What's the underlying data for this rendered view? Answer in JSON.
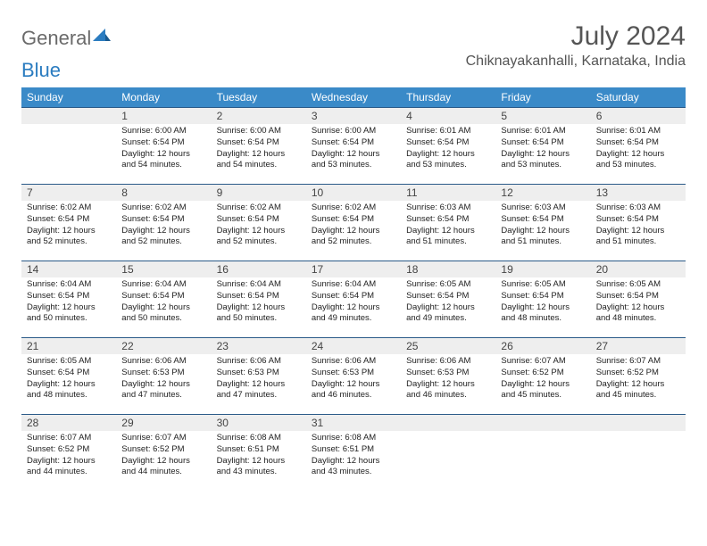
{
  "brand": {
    "general": "General",
    "blue": "Blue"
  },
  "title": "July 2024",
  "location": "Chiknayakanhalli, Karnataka, India",
  "colors": {
    "header_bg": "#3a8ac8",
    "daynum_bg": "#eeeeee",
    "row_border": "#2a5a88",
    "logo_gray": "#6a6a6a",
    "logo_blue": "#2b7cc0"
  },
  "weekdays": [
    "Sunday",
    "Monday",
    "Tuesday",
    "Wednesday",
    "Thursday",
    "Friday",
    "Saturday"
  ],
  "weeks": [
    [
      {
        "n": "",
        "sr": "",
        "ss": "",
        "dl": ""
      },
      {
        "n": "1",
        "sr": "6:00 AM",
        "ss": "6:54 PM",
        "dl": "12 hours and 54 minutes."
      },
      {
        "n": "2",
        "sr": "6:00 AM",
        "ss": "6:54 PM",
        "dl": "12 hours and 54 minutes."
      },
      {
        "n": "3",
        "sr": "6:00 AM",
        "ss": "6:54 PM",
        "dl": "12 hours and 53 minutes."
      },
      {
        "n": "4",
        "sr": "6:01 AM",
        "ss": "6:54 PM",
        "dl": "12 hours and 53 minutes."
      },
      {
        "n": "5",
        "sr": "6:01 AM",
        "ss": "6:54 PM",
        "dl": "12 hours and 53 minutes."
      },
      {
        "n": "6",
        "sr": "6:01 AM",
        "ss": "6:54 PM",
        "dl": "12 hours and 53 minutes."
      }
    ],
    [
      {
        "n": "7",
        "sr": "6:02 AM",
        "ss": "6:54 PM",
        "dl": "12 hours and 52 minutes."
      },
      {
        "n": "8",
        "sr": "6:02 AM",
        "ss": "6:54 PM",
        "dl": "12 hours and 52 minutes."
      },
      {
        "n": "9",
        "sr": "6:02 AM",
        "ss": "6:54 PM",
        "dl": "12 hours and 52 minutes."
      },
      {
        "n": "10",
        "sr": "6:02 AM",
        "ss": "6:54 PM",
        "dl": "12 hours and 52 minutes."
      },
      {
        "n": "11",
        "sr": "6:03 AM",
        "ss": "6:54 PM",
        "dl": "12 hours and 51 minutes."
      },
      {
        "n": "12",
        "sr": "6:03 AM",
        "ss": "6:54 PM",
        "dl": "12 hours and 51 minutes."
      },
      {
        "n": "13",
        "sr": "6:03 AM",
        "ss": "6:54 PM",
        "dl": "12 hours and 51 minutes."
      }
    ],
    [
      {
        "n": "14",
        "sr": "6:04 AM",
        "ss": "6:54 PM",
        "dl": "12 hours and 50 minutes."
      },
      {
        "n": "15",
        "sr": "6:04 AM",
        "ss": "6:54 PM",
        "dl": "12 hours and 50 minutes."
      },
      {
        "n": "16",
        "sr": "6:04 AM",
        "ss": "6:54 PM",
        "dl": "12 hours and 50 minutes."
      },
      {
        "n": "17",
        "sr": "6:04 AM",
        "ss": "6:54 PM",
        "dl": "12 hours and 49 minutes."
      },
      {
        "n": "18",
        "sr": "6:05 AM",
        "ss": "6:54 PM",
        "dl": "12 hours and 49 minutes."
      },
      {
        "n": "19",
        "sr": "6:05 AM",
        "ss": "6:54 PM",
        "dl": "12 hours and 48 minutes."
      },
      {
        "n": "20",
        "sr": "6:05 AM",
        "ss": "6:54 PM",
        "dl": "12 hours and 48 minutes."
      }
    ],
    [
      {
        "n": "21",
        "sr": "6:05 AM",
        "ss": "6:54 PM",
        "dl": "12 hours and 48 minutes."
      },
      {
        "n": "22",
        "sr": "6:06 AM",
        "ss": "6:53 PM",
        "dl": "12 hours and 47 minutes."
      },
      {
        "n": "23",
        "sr": "6:06 AM",
        "ss": "6:53 PM",
        "dl": "12 hours and 47 minutes."
      },
      {
        "n": "24",
        "sr": "6:06 AM",
        "ss": "6:53 PM",
        "dl": "12 hours and 46 minutes."
      },
      {
        "n": "25",
        "sr": "6:06 AM",
        "ss": "6:53 PM",
        "dl": "12 hours and 46 minutes."
      },
      {
        "n": "26",
        "sr": "6:07 AM",
        "ss": "6:52 PM",
        "dl": "12 hours and 45 minutes."
      },
      {
        "n": "27",
        "sr": "6:07 AM",
        "ss": "6:52 PM",
        "dl": "12 hours and 45 minutes."
      }
    ],
    [
      {
        "n": "28",
        "sr": "6:07 AM",
        "ss": "6:52 PM",
        "dl": "12 hours and 44 minutes."
      },
      {
        "n": "29",
        "sr": "6:07 AM",
        "ss": "6:52 PM",
        "dl": "12 hours and 44 minutes."
      },
      {
        "n": "30",
        "sr": "6:08 AM",
        "ss": "6:51 PM",
        "dl": "12 hours and 43 minutes."
      },
      {
        "n": "31",
        "sr": "6:08 AM",
        "ss": "6:51 PM",
        "dl": "12 hours and 43 minutes."
      },
      {
        "n": "",
        "sr": "",
        "ss": "",
        "dl": ""
      },
      {
        "n": "",
        "sr": "",
        "ss": "",
        "dl": ""
      },
      {
        "n": "",
        "sr": "",
        "ss": "",
        "dl": ""
      }
    ]
  ],
  "labels": {
    "sunrise": "Sunrise: ",
    "sunset": "Sunset: ",
    "daylight": "Daylight: "
  }
}
